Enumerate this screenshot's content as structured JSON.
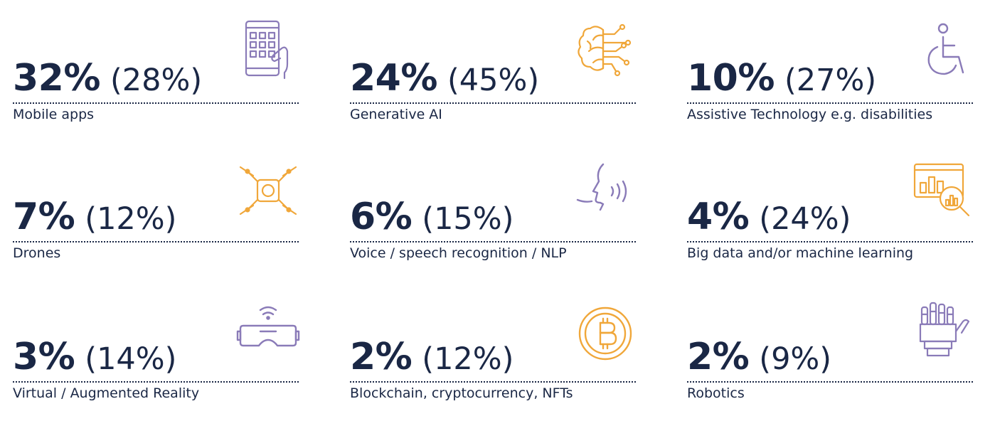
{
  "colors": {
    "text": "#1a2745",
    "accent_orange": "#f0a73a",
    "accent_purple": "#8a7bb8"
  },
  "chart_data": {
    "type": "table",
    "title": "",
    "columns": [
      "value",
      "previous_value",
      "label",
      "icon"
    ],
    "items": [
      {
        "value": "32%",
        "previous": "(28%)",
        "label": "Mobile apps",
        "icon": "mobile-app-icon",
        "icon_color": "#8a7bb8"
      },
      {
        "value": "24%",
        "previous": "(45%)",
        "label": "Generative AI",
        "icon": "brain-circuit-icon",
        "icon_color": "#f0a73a"
      },
      {
        "value": "10%",
        "previous": "(27%)",
        "label": "Assistive Technology e.g. disabilities",
        "icon": "wheelchair-icon",
        "icon_color": "#8a7bb8"
      },
      {
        "value": "7%",
        "previous": "(12%)",
        "label": "Drones",
        "icon": "drone-icon",
        "icon_color": "#f0a73a"
      },
      {
        "value": "6%",
        "previous": "(15%)",
        "label": "Voice / speech recognition / NLP",
        "icon": "voice-icon",
        "icon_color": "#8a7bb8"
      },
      {
        "value": "4%",
        "previous": "(24%)",
        "label": "Big data and/or machine learning",
        "icon": "data-analysis-icon",
        "icon_color": "#f0a73a"
      },
      {
        "value": "3%",
        "previous": "(14%)",
        "label": "Virtual / Augmented Reality",
        "icon": "vr-headset-icon",
        "icon_color": "#8a7bb8"
      },
      {
        "value": "2%",
        "previous": "(12%)",
        "label": "Blockchain, cryptocurrency, NFTs",
        "icon": "bitcoin-icon",
        "icon_color": "#f0a73a"
      },
      {
        "value": "2%",
        "previous": "(9%)",
        "label": "Robotics",
        "icon": "robot-hand-icon",
        "icon_color": "#8a7bb8"
      }
    ]
  }
}
